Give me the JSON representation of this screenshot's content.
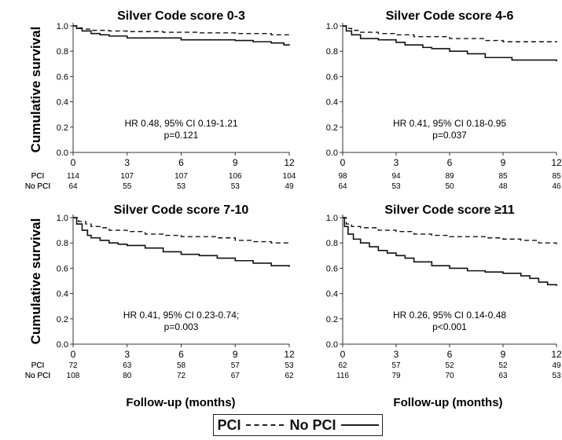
{
  "ylabel": "Cumulative survival",
  "xlabel": "Follow-up (months)",
  "legend": [
    {
      "label": "PCI",
      "style": "dashed"
    },
    {
      "label": "No PCI",
      "style": "solid"
    }
  ],
  "chart_data": [
    {
      "type": "line",
      "title": "Silver Code score 0-3",
      "xlim": [
        0,
        12
      ],
      "ylim": [
        0,
        1
      ],
      "xticks": [
        0,
        3,
        6,
        9,
        12
      ],
      "yticks": [
        "0.0",
        "0.2",
        "0.4",
        "0.6",
        "0.8",
        "1.0"
      ],
      "annotation": [
        "HR 0.48, 95% CI 0.19-1.21",
        "p=0.121"
      ],
      "risk_rows": [
        "PCI",
        "No PCI"
      ],
      "risk_table": {
        "PCI": [
          "114",
          "107",
          "107",
          "106",
          "104"
        ],
        "No PCI": [
          "64",
          "55",
          "53",
          "53",
          "49"
        ]
      },
      "series": [
        {
          "name": "PCI",
          "style": "dashed",
          "x": [
            0,
            0.2,
            0.5,
            1,
            2,
            3,
            5,
            7,
            9,
            11,
            12
          ],
          "y": [
            1.0,
            0.985,
            0.975,
            0.965,
            0.96,
            0.955,
            0.95,
            0.945,
            0.94,
            0.93,
            0.92
          ]
        },
        {
          "name": "No PCI",
          "style": "solid",
          "x": [
            0,
            0.2,
            0.5,
            1,
            1.5,
            2,
            3,
            6,
            9,
            10,
            11,
            11.7,
            12
          ],
          "y": [
            1.0,
            0.98,
            0.96,
            0.94,
            0.93,
            0.92,
            0.905,
            0.89,
            0.885,
            0.875,
            0.865,
            0.85,
            0.845
          ]
        }
      ]
    },
    {
      "type": "line",
      "title": "Silver Code score 4-6",
      "xlim": [
        0,
        12
      ],
      "ylim": [
        0,
        1
      ],
      "xticks": [
        0,
        3,
        6,
        9,
        12
      ],
      "yticks": [
        "0.0",
        "0.2",
        "0.4",
        "0.6",
        "0.8",
        "1.0"
      ],
      "annotation": [
        "HR 0.41, 95% CI 0.18-0.95",
        "p=0.037"
      ],
      "risk_rows": [
        "PCI",
        "No PCI"
      ],
      "risk_table": {
        "PCI": [
          "98",
          "94",
          "89",
          "85",
          "85"
        ],
        "No PCI": [
          "64",
          "53",
          "50",
          "48",
          "46"
        ]
      },
      "series": [
        {
          "name": "PCI",
          "style": "dashed",
          "x": [
            0,
            0.2,
            0.5,
            1,
            2,
            3,
            4,
            6,
            8,
            9,
            12
          ],
          "y": [
            1.0,
            0.98,
            0.965,
            0.95,
            0.94,
            0.93,
            0.915,
            0.9,
            0.885,
            0.875,
            0.87
          ]
        },
        {
          "name": "No PCI",
          "style": "solid",
          "x": [
            0,
            0.2,
            0.5,
            1,
            2,
            3,
            3.5,
            4.5,
            5,
            6,
            7,
            8,
            9.5,
            12
          ],
          "y": [
            1.0,
            0.96,
            0.93,
            0.9,
            0.89,
            0.87,
            0.85,
            0.83,
            0.82,
            0.8,
            0.78,
            0.75,
            0.73,
            0.72
          ]
        }
      ]
    },
    {
      "type": "line",
      "title": "Silver Code score 7-10",
      "xlim": [
        0,
        12
      ],
      "ylim": [
        0,
        1
      ],
      "xticks": [
        0,
        3,
        6,
        9,
        12
      ],
      "yticks": [
        "0.0",
        "0.2",
        "0.4",
        "0.6",
        "0.8",
        "1.0"
      ],
      "annotation": [
        "HR 0.41, 95% CI 0.23-0.74;",
        "p=0.003"
      ],
      "risk_rows": [
        "PCI",
        "No PCI"
      ],
      "risk_table": {
        "PCI": [
          "72",
          "63",
          "58",
          "57",
          "53"
        ],
        "No PCI": [
          "108",
          "80",
          "72",
          "67",
          "62"
        ]
      },
      "series": [
        {
          "name": "PCI",
          "style": "dashed",
          "x": [
            0,
            0.3,
            0.7,
            1,
            1.5,
            2,
            3,
            4,
            5,
            6,
            8,
            9,
            10,
            11,
            12
          ],
          "y": [
            1.0,
            0.97,
            0.95,
            0.93,
            0.92,
            0.9,
            0.89,
            0.87,
            0.86,
            0.85,
            0.84,
            0.82,
            0.81,
            0.8,
            0.79
          ]
        },
        {
          "name": "No PCI",
          "style": "solid",
          "x": [
            0,
            0.2,
            0.5,
            0.8,
            1,
            1.5,
            2,
            2.5,
            3,
            4,
            5,
            6,
            7,
            8,
            9,
            10,
            11,
            12
          ],
          "y": [
            1.0,
            0.95,
            0.9,
            0.86,
            0.84,
            0.82,
            0.8,
            0.79,
            0.78,
            0.76,
            0.73,
            0.71,
            0.7,
            0.68,
            0.66,
            0.64,
            0.62,
            0.61
          ]
        }
      ]
    },
    {
      "type": "line",
      "title": "Silver Code score ≥11",
      "xlim": [
        0,
        12
      ],
      "ylim": [
        0,
        1
      ],
      "xticks": [
        0,
        3,
        6,
        9,
        12
      ],
      "yticks": [
        "0.0",
        "0.2",
        "0.4",
        "0.6",
        "0.8",
        "1.0"
      ],
      "annotation": [
        "HR 0.26, 95% CI 0.14-0.48",
        "p<0.001"
      ],
      "risk_rows": [
        "PCI",
        "No PCI"
      ],
      "risk_table": {
        "PCI": [
          "62",
          "57",
          "52",
          "52",
          "49"
        ],
        "No PCI": [
          "116",
          "79",
          "70",
          "63",
          "53"
        ]
      },
      "series": [
        {
          "name": "PCI",
          "style": "dashed",
          "x": [
            0,
            0.2,
            0.5,
            1,
            2,
            3,
            4,
            5,
            6,
            8,
            9,
            10,
            11,
            12
          ],
          "y": [
            1.0,
            0.95,
            0.93,
            0.92,
            0.9,
            0.89,
            0.87,
            0.86,
            0.85,
            0.84,
            0.83,
            0.82,
            0.8,
            0.79
          ]
        },
        {
          "name": "No PCI",
          "style": "solid",
          "x": [
            0,
            0.1,
            0.3,
            0.6,
            1,
            1.5,
            2,
            2.5,
            3,
            3.5,
            4,
            5,
            6,
            7,
            8,
            9,
            10,
            10.5,
            11,
            11.5,
            12
          ],
          "y": [
            1.0,
            0.93,
            0.87,
            0.83,
            0.8,
            0.77,
            0.74,
            0.72,
            0.7,
            0.68,
            0.65,
            0.62,
            0.6,
            0.58,
            0.57,
            0.56,
            0.54,
            0.52,
            0.49,
            0.47,
            0.46
          ]
        }
      ]
    }
  ]
}
